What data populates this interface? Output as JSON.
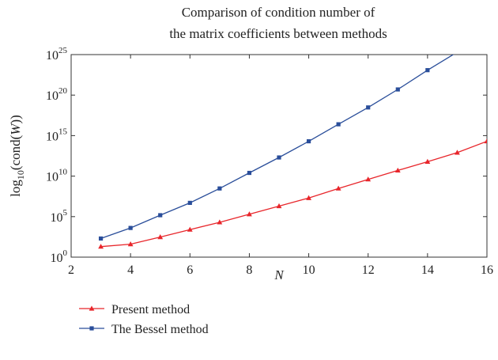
{
  "chart_data": {
    "type": "line",
    "title": [
      "Comparison of condition number of",
      "the matrix coefficients between methods"
    ],
    "xlabel": "N",
    "ylabel": "log10(cond(W))",
    "xlim": [
      2,
      16
    ],
    "ylim": [
      1,
      1e+25
    ],
    "yscale": "log",
    "x_ticks": [
      2,
      4,
      6,
      8,
      10,
      12,
      14,
      16
    ],
    "y_ticks": [
      {
        "value": 1,
        "base": "10",
        "exp": "0"
      },
      {
        "value": 100000,
        "base": "10",
        "exp": "5"
      },
      {
        "value": 10000000000.0,
        "base": "10",
        "exp": "10"
      },
      {
        "value": 1000000000000000.0,
        "base": "10",
        "exp": "15"
      },
      {
        "value": 1e+20,
        "base": "10",
        "exp": "20"
      },
      {
        "value": 1e+25,
        "base": "10",
        "exp": "25"
      }
    ],
    "grid": false,
    "legend_position": "bottom-left",
    "series": [
      {
        "name": "Present method",
        "color": "#e8262b",
        "marker": "triangle",
        "x": [
          3,
          4,
          5,
          6,
          7,
          8,
          9,
          10,
          11,
          12,
          13,
          14,
          15,
          16
        ],
        "y": [
          20,
          40,
          300,
          2500,
          20000,
          200000,
          2000000,
          20000000,
          300000000,
          4000000000,
          50000000000,
          600000000000,
          8000000000000,
          200000000000000.0
        ]
      },
      {
        "name": "The Bessel method",
        "color": "#2a4e9a",
        "marker": "square",
        "x": [
          3,
          4,
          5,
          6,
          7,
          8,
          9,
          10,
          11,
          12,
          13,
          14,
          15,
          16
        ],
        "y": [
          200,
          4000,
          150000,
          5000000,
          300000000,
          25000000000,
          2000000000000,
          200000000000000.0,
          2.5e+16,
          3e+18,
          5e+20,
          1.2e+23,
          2e+25,
          6e+27
        ]
      }
    ]
  }
}
